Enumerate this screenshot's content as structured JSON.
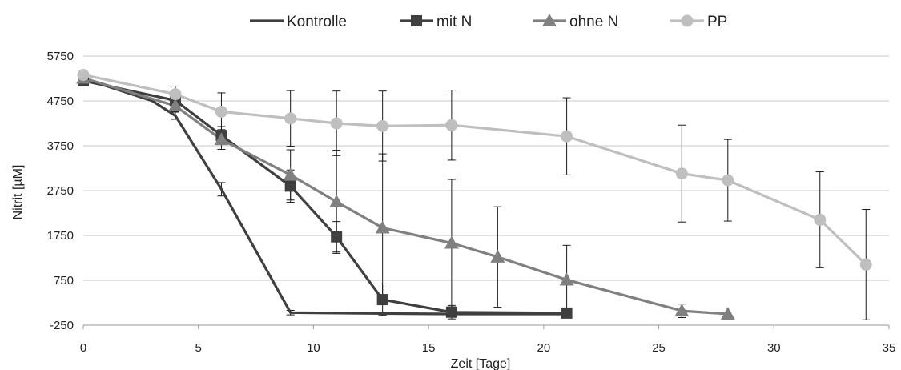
{
  "chart_data": {
    "type": "line",
    "title": "",
    "xlabel": "Zeit [Tage]",
    "ylabel": "Nitrit [µM]",
    "xlim": [
      0,
      35
    ],
    "ylim": [
      -250,
      5750
    ],
    "xticks": [
      0,
      5,
      10,
      15,
      20,
      25,
      30,
      35
    ],
    "yticks": [
      -250,
      750,
      1750,
      2750,
      3750,
      4750,
      5750
    ],
    "grid": "horizontal",
    "legend_position": "top",
    "series": [
      {
        "name": "Kontrolle",
        "marker": "none",
        "color": "#3f3f3f",
        "x": [
          0,
          3,
          4,
          6,
          9,
          13,
          16,
          21
        ],
        "y": [
          5250,
          4750,
          4420,
          2780,
          30,
          10,
          0,
          0
        ],
        "err": [
          0,
          0,
          80,
          150,
          50,
          0,
          0,
          0
        ]
      },
      {
        "name": "mit N",
        "marker": "square",
        "color": "#3f3f3f",
        "x": [
          0,
          4,
          6,
          9,
          11,
          13,
          16,
          21
        ],
        "y": [
          5200,
          4760,
          3980,
          2850,
          1720,
          320,
          40,
          20
        ],
        "err": [
          0,
          100,
          200,
          360,
          340,
          350,
          150,
          0
        ]
      },
      {
        "name": "ohne N",
        "marker": "triangle",
        "color": "#808080",
        "x": [
          0,
          4,
          6,
          9,
          11,
          13,
          16,
          18,
          21,
          26,
          28
        ],
        "y": [
          5260,
          4640,
          3890,
          3100,
          2500,
          1920,
          1580,
          1270,
          760,
          70,
          0
        ],
        "err": [
          0,
          130,
          220,
          560,
          1150,
          1650,
          1420,
          1120,
          770,
          150,
          0
        ]
      },
      {
        "name": "PP",
        "marker": "circle",
        "color": "#bfbfbf",
        "x": [
          0,
          4,
          6,
          9,
          11,
          13,
          16,
          21,
          26,
          28,
          32,
          34
        ],
        "y": [
          5330,
          4900,
          4510,
          4360,
          4250,
          4190,
          4210,
          3960,
          3130,
          2980,
          2100,
          1100
        ],
        "err": [
          0,
          180,
          420,
          620,
          720,
          780,
          780,
          860,
          1080,
          910,
          1070,
          1230
        ]
      }
    ]
  }
}
